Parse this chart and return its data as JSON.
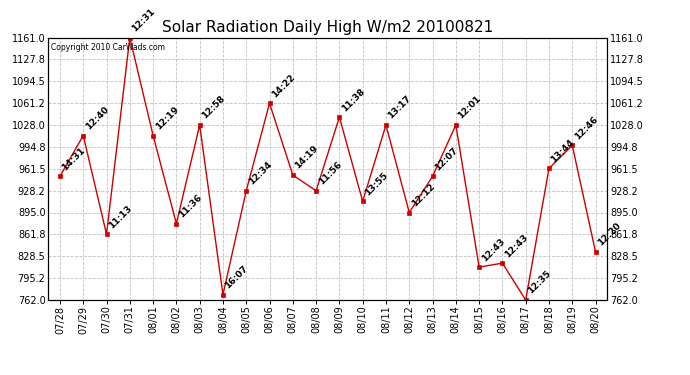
{
  "title": "Solar Radiation Daily High W/m2 20100821",
  "copyright": "Copyright 2010 CarWads.com",
  "dates": [
    "07/28",
    "07/29",
    "07/30",
    "07/31",
    "08/01",
    "08/02",
    "08/03",
    "08/04",
    "08/05",
    "08/06",
    "08/07",
    "08/08",
    "08/09",
    "08/10",
    "08/11",
    "08/12",
    "08/13",
    "08/14",
    "08/15",
    "08/16",
    "08/17",
    "08/18",
    "08/19",
    "08/20"
  ],
  "values": [
    950,
    1012,
    862,
    1161,
    1012,
    878,
    1028,
    770,
    928,
    1061,
    952,
    928,
    1040,
    912,
    1028,
    895,
    950,
    1028,
    812,
    818,
    762,
    962,
    997,
    835
  ],
  "labels": [
    "14:31",
    "12:40",
    "11:13",
    "12:31",
    "12:19",
    "11:36",
    "12:58",
    "16:07",
    "12:34",
    "14:22",
    "14:19",
    "11:56",
    "11:38",
    "13:55",
    "13:17",
    "12:12",
    "12:07",
    "12:01",
    "12:43",
    "12:43",
    "12:35",
    "13:44",
    "12:46",
    "12:20"
  ],
  "line_color": "#cc0000",
  "marker_color": "#cc0000",
  "grid_color": "#c0c0c0",
  "bg_color": "#ffffff",
  "ylim_min": 762.0,
  "ylim_max": 1161.0,
  "yticks": [
    762.0,
    795.2,
    828.5,
    861.8,
    895.0,
    928.2,
    961.5,
    994.8,
    1028.0,
    1061.2,
    1094.5,
    1127.8,
    1161.0
  ],
  "title_fontsize": 11,
  "label_fontsize": 6.5,
  "tick_fontsize": 7,
  "fig_width": 6.9,
  "fig_height": 3.75,
  "dpi": 100
}
